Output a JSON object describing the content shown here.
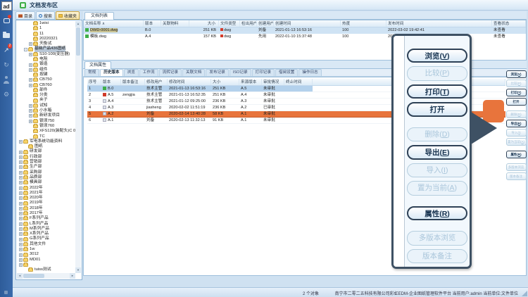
{
  "app": {
    "logo": "ad",
    "title": "文档发布区"
  },
  "appbar": {
    "chart_badge": "2",
    "refresh_glyph": "↻",
    "gear_glyph": "⚙"
  },
  "left_panel": {
    "tabs": [
      {
        "label": "目录",
        "active": false
      },
      {
        "label": "搜索",
        "active": false
      },
      {
        "label": "收藏夹",
        "active": true
      }
    ],
    "tree": [
      {
        "label": "1wisi",
        "d": 3
      },
      {
        "label": "1",
        "d": 3
      },
      {
        "label": "11",
        "d": 3
      },
      {
        "label": "20220321",
        "d": 3
      },
      {
        "label": "天衡试",
        "d": 3,
        "exp": "+"
      },
      {
        "label": "基础产品436图纸",
        "d": 2,
        "exp": "-",
        "selected": true
      },
      {
        "label": "S10-100(变压器)",
        "d": 3,
        "exp": "+"
      },
      {
        "label": "电阻",
        "d": 3
      },
      {
        "label": "锻造",
        "d": 3,
        "exp": "+"
      },
      {
        "label": "组件",
        "d": 3,
        "exp": "+"
      },
      {
        "label": "按键",
        "d": 3
      },
      {
        "label": "CB750",
        "d": 3,
        "exp": "+"
      },
      {
        "label": "CB760",
        "d": 3,
        "exp": "+"
      },
      {
        "label": "部件",
        "d": 3
      },
      {
        "label": "分类",
        "d": 3
      },
      {
        "label": "夹子",
        "d": 3
      },
      {
        "label": "试知",
        "d": 3,
        "exp": "+"
      },
      {
        "label": "小水箱",
        "d": 3,
        "exp": "+"
      },
      {
        "label": "新研发项目",
        "d": 3,
        "exp": "+"
      },
      {
        "label": "银须750",
        "d": 3,
        "exp": "+"
      },
      {
        "label": "银须760",
        "d": 3
      },
      {
        "label": "XFS120(装配头)C 0 图纸",
        "d": 3
      },
      {
        "label": "TC",
        "d": 3
      },
      {
        "label": "军电系统功能资料",
        "d": 1,
        "exp": "+"
      },
      {
        "label": "图纸",
        "d": 2
      },
      {
        "label": "研发部",
        "d": 1,
        "exp": "+"
      },
      {
        "label": "行政部",
        "d": 1,
        "exp": "+"
      },
      {
        "label": "营销部",
        "d": 1,
        "exp": "+"
      },
      {
        "label": "生产部",
        "d": 1,
        "exp": "+"
      },
      {
        "label": "采购部",
        "d": 1,
        "exp": "+"
      },
      {
        "label": "品质部",
        "d": 1,
        "exp": "+"
      },
      {
        "label": "模具部",
        "d": 1,
        "exp": "+"
      },
      {
        "label": "2022年",
        "d": 1,
        "exp": "+"
      },
      {
        "label": "2021年",
        "d": 1,
        "exp": "+"
      },
      {
        "label": "2020年",
        "d": 1,
        "exp": "+"
      },
      {
        "label": "2019年",
        "d": 1,
        "exp": "+"
      },
      {
        "label": "2018年",
        "d": 1,
        "exp": "+"
      },
      {
        "label": "2017年",
        "d": 1,
        "exp": "+"
      },
      {
        "label": "F系列产品",
        "d": 1,
        "exp": "+"
      },
      {
        "label": "L系列产品",
        "d": 1,
        "exp": "+"
      },
      {
        "label": "M系列产品",
        "d": 1,
        "exp": "+"
      },
      {
        "label": "X系列产品",
        "d": 1,
        "exp": "+"
      },
      {
        "label": "G系列产品",
        "d": 1,
        "exp": "+"
      },
      {
        "label": "其他文件",
        "d": 1,
        "exp": "+"
      },
      {
        "label": "1w",
        "d": 1,
        "exp": "+"
      },
      {
        "label": "3012",
        "d": 1,
        "exp": "+"
      },
      {
        "label": "MD01",
        "d": 1,
        "exp": "+"
      },
      {
        "label": "",
        "d": 1,
        "exp": "+"
      },
      {
        "label": "tuiss测试",
        "d": 2
      },
      {
        "label": "3013",
        "d": 1,
        "exp": "+"
      }
    ]
  },
  "doc_list": {
    "tab": "文档列表",
    "sort_indicator": "∧",
    "columns": [
      "文档名称",
      "版本",
      "关联物料",
      "大小",
      "文件类型",
      "检出用户",
      "创建用户",
      "创建时间",
      "热度",
      "发布时间",
      "查看状态"
    ],
    "rows": [
      {
        "name": "DWD-0001.dwg",
        "version": "B.0",
        "material": "",
        "size": "251 KB",
        "type": "dwg",
        "checkout_user": "",
        "create_user": "刘备",
        "create_time": "2021-01-13 16:53:16",
        "heat": "100",
        "publish_time": "2022-03-02 19:42:41",
        "view_status": "未查看",
        "selected": true
      },
      {
        "name": "模板.dwg",
        "version": "A.4",
        "material": "",
        "size": "157 KB",
        "type": "dwg",
        "checkout_user": "",
        "create_user": "先用",
        "create_time": "2022-01-10 15:37:48",
        "heat": "100",
        "publish_time": "2022-02-28 16:45:03",
        "view_status": "未查看",
        "selected": false
      }
    ]
  },
  "doc_props": {
    "title": "文档属性",
    "tabs": [
      "常规",
      "历史版本",
      "浏览",
      "工作流",
      "流转记录",
      "关联文档",
      "发布记录",
      "ISO记录",
      "打印记录",
      "借阅设置",
      "操作日志"
    ],
    "active_tab": "历史版本",
    "history": {
      "columns": [
        "序号",
        "版本",
        "版本备注",
        "修改用户",
        "修改时间",
        "大小",
        "来源版本",
        "审批情况",
        "终止时间"
      ],
      "rows": [
        {
          "no": "1",
          "ver": "B.0",
          "icon": "green",
          "note": "",
          "user": "技术主管",
          "time": "2021-01-13 16:53:16",
          "size": "251 KB",
          "source": "A.5",
          "approval": "未审批",
          "end": "",
          "hl": "blue"
        },
        {
          "no": "2",
          "ver": "A.5",
          "icon": "red",
          "note": "zengjia",
          "user": "技术主管",
          "time": "2021-01-13 16:52:35",
          "size": "251 KB",
          "source": "A.4",
          "approval": "未审批",
          "end": "",
          "hl": ""
        },
        {
          "no": "3",
          "ver": "A.4",
          "icon": "gray",
          "note": "",
          "user": "技术主管",
          "time": "2021-01-12 09:25:00",
          "size": "236 KB",
          "source": "A.3",
          "approval": "未审批",
          "end": "",
          "hl": ""
        },
        {
          "no": "4",
          "ver": "A.3",
          "icon": "gray",
          "note": "",
          "user": "jiasheng",
          "time": "2020-02-02 11:51:19",
          "size": "236 KB",
          "source": "A.2",
          "approval": "已审批",
          "end": "",
          "hl": ""
        },
        {
          "no": "5",
          "ver": "A.2",
          "icon": "gray",
          "note": "",
          "user": "刘备",
          "time": "2020-02-14 13:40:28",
          "size": "58 KB",
          "source": "A.1",
          "approval": "未审批",
          "end": "",
          "hl": "orange"
        },
        {
          "no": "6",
          "ver": "A.1",
          "icon": "gray",
          "note": "",
          "user": "刘备",
          "time": "2020-02-13 11:32:13",
          "size": "91 KB",
          "source": "A.1",
          "approval": "未审批",
          "end": "",
          "hl": ""
        }
      ]
    }
  },
  "actions": [
    {
      "label": "浏览",
      "key": "V",
      "enabled": true,
      "gap": false
    },
    {
      "label": "比较",
      "key": "P",
      "enabled": false,
      "gap": false
    },
    {
      "label": "打印",
      "key": "T",
      "enabled": true,
      "gap": false
    },
    {
      "label": "打开",
      "key": "",
      "enabled": true,
      "gap": false
    },
    {
      "label": "删除",
      "key": "D",
      "enabled": false,
      "gap": true
    },
    {
      "label": "导出",
      "key": "E",
      "enabled": true,
      "gap": false
    },
    {
      "label": "导入",
      "key": "I",
      "enabled": false,
      "gap": false
    },
    {
      "label": "置为当前",
      "key": "A",
      "enabled": false,
      "gap": false
    },
    {
      "label": "属性",
      "key": "R",
      "enabled": true,
      "gap": true
    },
    {
      "label": "多版本浏览",
      "key": "",
      "enabled": false,
      "gap": true
    },
    {
      "label": "版本备注",
      "key": "",
      "enabled": false,
      "gap": false
    }
  ],
  "status": {
    "count": "2 个对象",
    "company": "南宁市二零二五科技有限公司彩虹EDM-企业图纸管理软件平台",
    "user": "当前用户:admin",
    "unit": "当前单位:文件单位"
  },
  "scroll": {
    "up": "▲",
    "down": "▼",
    "left": "◄",
    "right": "►"
  },
  "colors": {
    "accent_orange": "#e8743c",
    "selection_blue": "#b3d1ec",
    "appbar_blue": "#33639f",
    "popup_border": "#3e5164"
  }
}
